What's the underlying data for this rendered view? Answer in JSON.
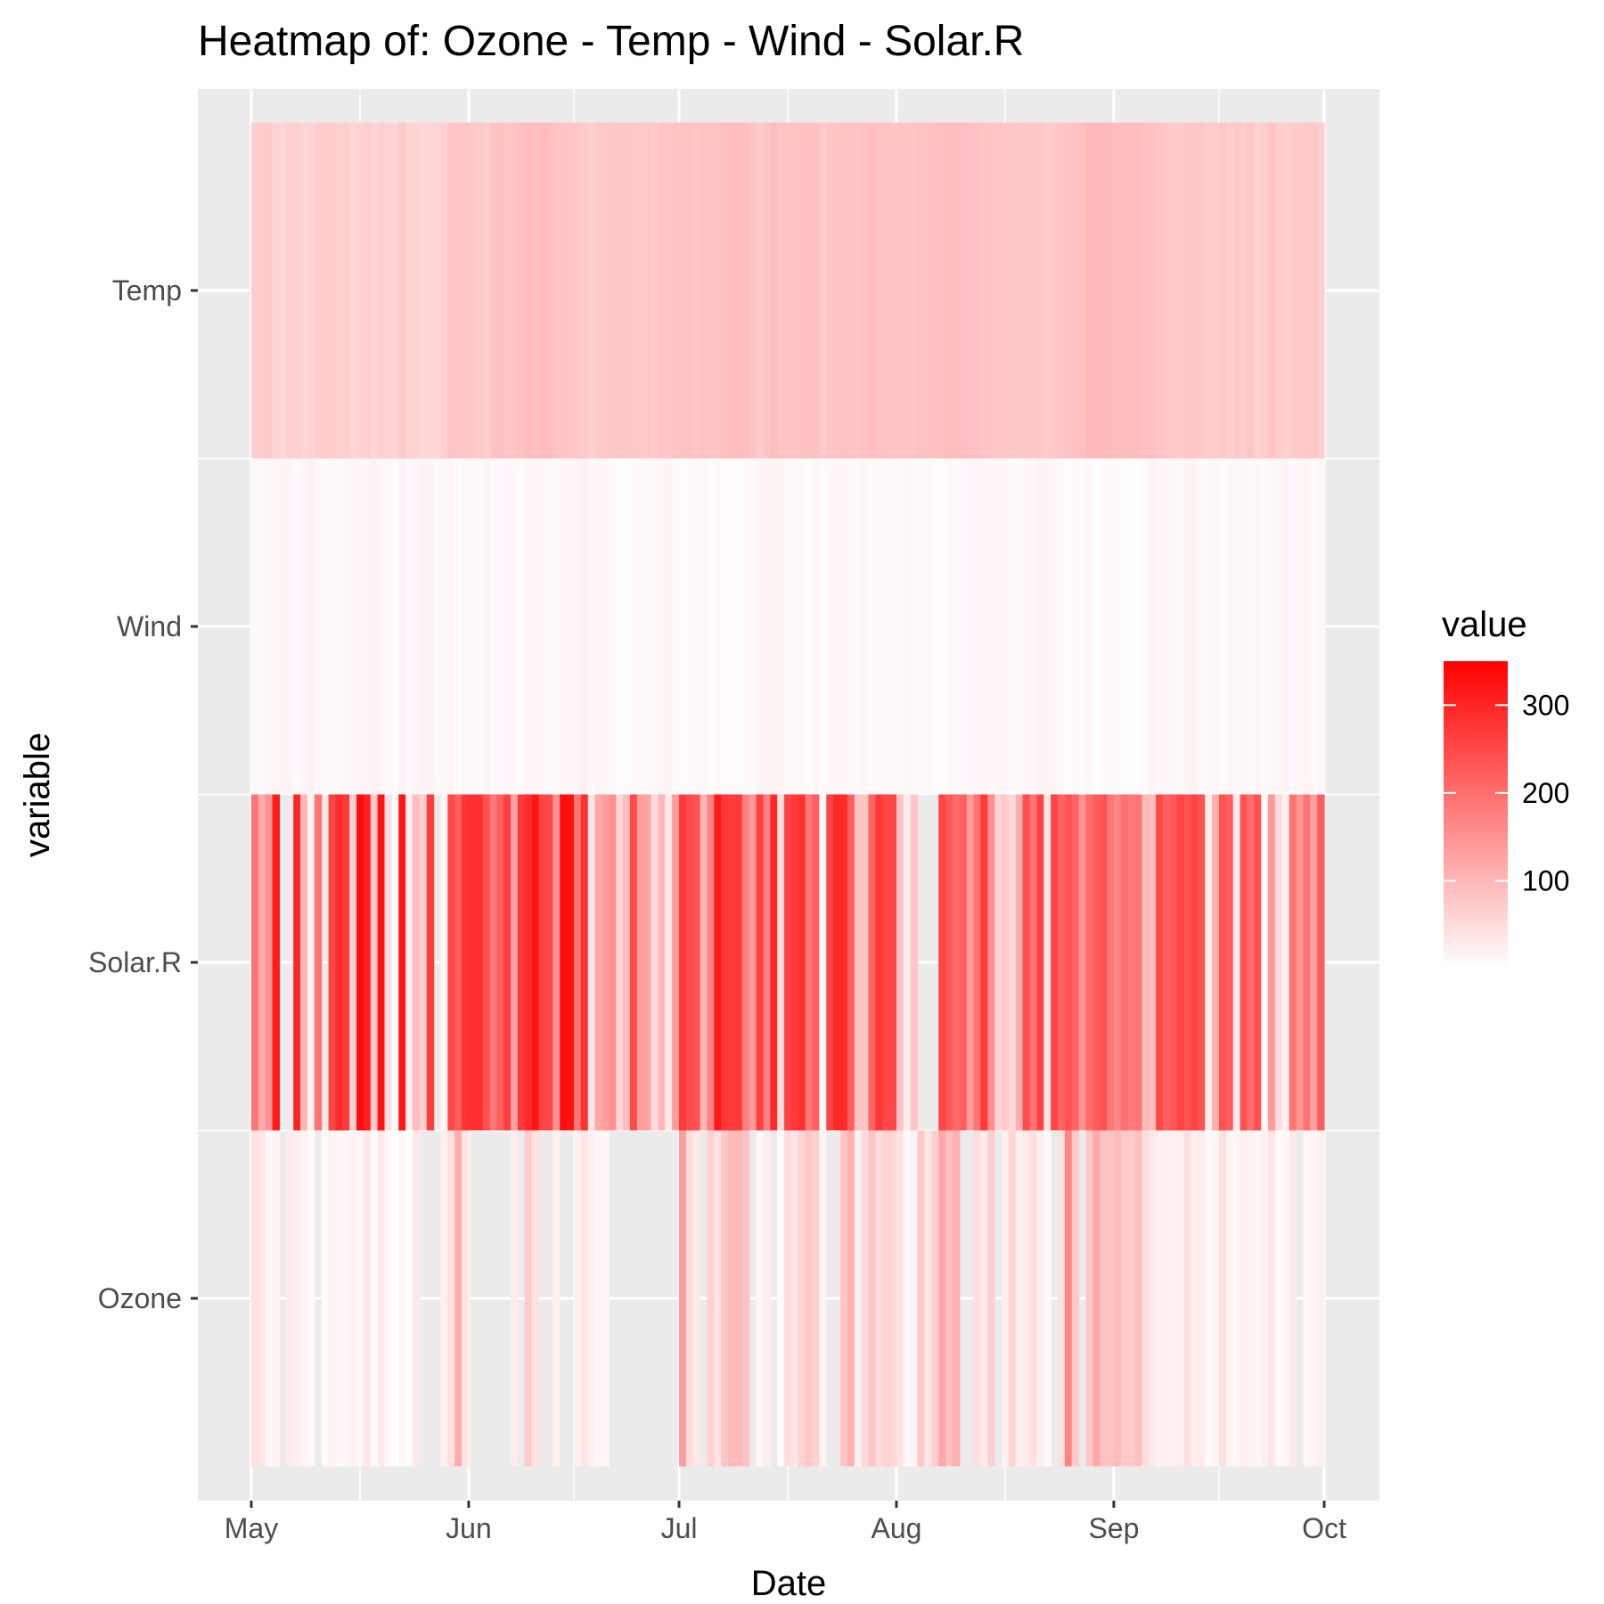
{
  "chart_data": {
    "type": "heatmap",
    "title": "Heatmap of: Ozone - Temp - Wind - Solar.R",
    "xlabel": "Date",
    "ylabel": "variable",
    "x_range": [
      "1973-05-01",
      "1973-09-30"
    ],
    "x_ticks": [
      {
        "label": "May",
        "date": "1973-05-01"
      },
      {
        "label": "Jun",
        "date": "1973-06-01"
      },
      {
        "label": "Jul",
        "date": "1973-07-01"
      },
      {
        "label": "Aug",
        "date": "1973-08-01"
      },
      {
        "label": "Sep",
        "date": "1973-09-01"
      },
      {
        "label": "Oct",
        "date": "1973-10-01"
      }
    ],
    "variables": [
      "Ozone",
      "Solar.R",
      "Wind",
      "Temp"
    ],
    "series": [
      {
        "name": "Ozone",
        "values": [
          41,
          36,
          12,
          18,
          null,
          28,
          23,
          19,
          8,
          null,
          7,
          16,
          11,
          14,
          18,
          14,
          34,
          6,
          30,
          11,
          1,
          11,
          4,
          32,
          null,
          null,
          null,
          23,
          45,
          115,
          37,
          null,
          null,
          null,
          null,
          null,
          null,
          29,
          null,
          71,
          39,
          null,
          null,
          23,
          null,
          null,
          21,
          37,
          20,
          12,
          13,
          null,
          null,
          null,
          null,
          null,
          null,
          null,
          null,
          null,
          null,
          135,
          49,
          32,
          null,
          64,
          40,
          77,
          97,
          97,
          85,
          null,
          10,
          27,
          null,
          7,
          48,
          35,
          61,
          79,
          63,
          16,
          null,
          null,
          80,
          108,
          20,
          52,
          82,
          50,
          64,
          59,
          39,
          9,
          16,
          78,
          35,
          66,
          122,
          89,
          110,
          null,
          null,
          44,
          28,
          65,
          null,
          22,
          59,
          23,
          31,
          44,
          21,
          9,
          null,
          45,
          168,
          73,
          null,
          76,
          118,
          84,
          85,
          96,
          78,
          73,
          91,
          47,
          32,
          20,
          23,
          21,
          24,
          44,
          21,
          28,
          9,
          13,
          46,
          18,
          13,
          24,
          16,
          13,
          23,
          36,
          7,
          14,
          30,
          null,
          14,
          18,
          20
        ]
      },
      {
        "name": "Solar.R",
        "values": [
          190,
          118,
          149,
          313,
          null,
          null,
          299,
          99,
          19,
          194,
          null,
          256,
          290,
          274,
          65,
          334,
          307,
          78,
          322,
          44,
          8,
          320,
          25,
          92,
          66,
          266,
          null,
          13,
          252,
          223,
          279,
          286,
          287,
          242,
          186,
          220,
          264,
          127,
          273,
          291,
          323,
          259,
          250,
          148,
          332,
          322,
          191,
          284,
          37,
          120,
          137,
          150,
          59,
          91,
          250,
          135,
          127,
          47,
          98,
          31,
          138,
          269,
          248,
          236,
          101,
          175,
          314,
          276,
          267,
          272,
          175,
          139,
          264,
          175,
          291,
          48,
          260,
          274,
          285,
          187,
          220,
          7,
          258,
          295,
          294,
          223,
          81,
          82,
          213,
          275,
          253,
          254,
          83,
          24,
          77,
          null,
          null,
          null,
          255,
          229,
          207,
          222,
          137,
          192,
          273,
          157,
          64,
          71,
          51,
          115,
          244,
          190,
          259,
          36,
          255,
          212,
          238,
          215,
          153,
          203,
          225,
          237,
          188,
          167,
          197,
          183,
          189,
          95,
          92,
          252,
          220,
          230,
          259,
          236,
          259,
          238,
          24,
          112,
          237,
          224,
          27,
          238,
          201,
          238,
          14,
          139,
          49,
          20,
          193,
          145,
          191,
          131,
          223
        ]
      },
      {
        "name": "Wind",
        "values": [
          7.4,
          8.0,
          12.6,
          11.5,
          14.3,
          14.9,
          8.6,
          13.8,
          20.1,
          8.6,
          6.9,
          9.7,
          9.2,
          10.9,
          13.2,
          11.5,
          12.0,
          18.4,
          11.5,
          9.7,
          9.7,
          16.6,
          9.7,
          12.0,
          16.6,
          14.9,
          8.0,
          12.0,
          14.9,
          5.7,
          7.4,
          8.6,
          9.7,
          16.1,
          9.2,
          8.6,
          14.3,
          9.7,
          6.9,
          13.8,
          11.5,
          10.9,
          9.2,
          8.0,
          13.8,
          11.5,
          14.9,
          20.7,
          9.2,
          11.5,
          10.3,
          6.3,
          1.7,
          4.6,
          6.3,
          8.0,
          8.0,
          10.3,
          11.5,
          14.9,
          8.0,
          4.1,
          9.2,
          9.2,
          10.9,
          4.6,
          10.9,
          5.1,
          6.3,
          5.7,
          7.4,
          8.6,
          14.3,
          14.9,
          14.9,
          14.3,
          6.9,
          10.3,
          6.3,
          5.1,
          11.5,
          6.9,
          9.7,
          11.5,
          8.6,
          8.0,
          8.6,
          12.0,
          7.4,
          7.4,
          7.4,
          9.2,
          6.9,
          13.8,
          7.4,
          6.9,
          7.4,
          4.6,
          4.0,
          10.3,
          8.0,
          8.6,
          11.5,
          11.5,
          11.5,
          9.7,
          11.5,
          10.3,
          6.3,
          7.4,
          10.9,
          10.3,
          15.5,
          14.3,
          12.6,
          9.7,
          3.4,
          8.0,
          5.7,
          9.7,
          2.3,
          6.3,
          6.3,
          6.9,
          5.1,
          2.8,
          4.6,
          7.4,
          15.5,
          10.9,
          10.3,
          10.9,
          9.7,
          14.9,
          15.5,
          6.3,
          10.9,
          11.5,
          6.9,
          13.8,
          10.3,
          10.3,
          8.0,
          12.6,
          9.2,
          10.3,
          10.3,
          16.6,
          6.9,
          13.2,
          14.3,
          8.0,
          11.5
        ]
      },
      {
        "name": "Temp",
        "values": [
          67,
          72,
          74,
          62,
          56,
          66,
          65,
          59,
          61,
          69,
          74,
          69,
          66,
          68,
          58,
          64,
          66,
          57,
          68,
          62,
          59,
          73,
          61,
          61,
          57,
          58,
          57,
          67,
          81,
          79,
          76,
          78,
          74,
          67,
          84,
          85,
          79,
          82,
          87,
          90,
          87,
          93,
          92,
          82,
          80,
          79,
          77,
          72,
          65,
          73,
          76,
          77,
          76,
          76,
          76,
          75,
          78,
          73,
          80,
          77,
          83,
          84,
          85,
          81,
          84,
          83,
          83,
          88,
          92,
          92,
          89,
          82,
          73,
          81,
          91,
          80,
          81,
          82,
          84,
          87,
          85,
          74,
          81,
          82,
          86,
          85,
          82,
          86,
          88,
          86,
          83,
          81,
          81,
          81,
          82,
          86,
          85,
          87,
          89,
          90,
          90,
          92,
          86,
          86,
          82,
          80,
          79,
          77,
          79,
          76,
          78,
          78,
          77,
          72,
          75,
          79,
          81,
          86,
          88,
          97,
          94,
          96,
          94,
          91,
          92,
          93,
          93,
          87,
          84,
          80,
          78,
          75,
          73,
          81,
          76,
          77,
          71,
          71,
          78,
          67,
          76,
          68,
          82,
          64,
          71,
          81,
          69,
          63,
          70,
          77,
          75,
          76,
          68
        ]
      }
    ],
    "legend": {
      "title": "value",
      "position": "right",
      "scale_min": 1,
      "scale_max": 350,
      "ticks": [
        100,
        200,
        300
      ],
      "colors": [
        "#ffffff",
        "#ff0000"
      ]
    },
    "grid": true,
    "panel_background": "#ebebeb",
    "grid_color": "#ffffff"
  }
}
